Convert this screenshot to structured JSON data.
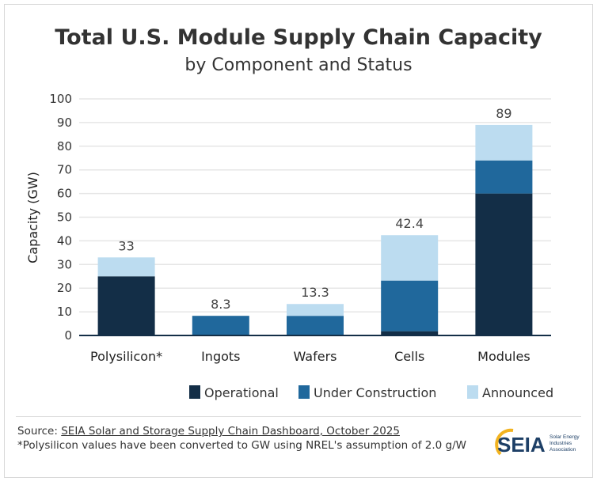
{
  "chart_data": {
    "type": "bar",
    "stacked": true,
    "title": "Total U.S. Module Supply Chain Capacity",
    "subtitle": "by Component and Status",
    "xlabel": "",
    "ylabel": "Capacity (GW)",
    "ylim": [
      0,
      100
    ],
    "yticks": [
      0,
      10,
      20,
      30,
      40,
      50,
      60,
      70,
      80,
      90,
      100
    ],
    "grid": true,
    "legend": "bottom-right",
    "categories": [
      "Polysilicon*",
      "Ingots",
      "Wafers",
      "Cells",
      "Modules"
    ],
    "series": [
      {
        "name": "Operational",
        "color": "#132e47",
        "values": [
          25,
          0,
          0,
          1.8,
          60
        ]
      },
      {
        "name": "Under Construction",
        "color": "#20689c",
        "values": [
          0,
          8.3,
          8.3,
          21.4,
          14
        ]
      },
      {
        "name": "Announced",
        "color": "#bcdcf0",
        "values": [
          8,
          0,
          5,
          19.2,
          15
        ]
      }
    ],
    "totals": [
      "33",
      "8.3",
      "13.3",
      "42.4",
      "89"
    ]
  },
  "footer": {
    "source_prefix": "Source: ",
    "source_link": "SEIA Solar and Storage Supply Chain Dashboard, October 2025",
    "note": "*Polysilicon values have been converted to GW using NREL's assumption of 2.0 g/W"
  },
  "logo": {
    "text": "SEIA",
    "tagline": "Solar Energy Industries Association"
  }
}
